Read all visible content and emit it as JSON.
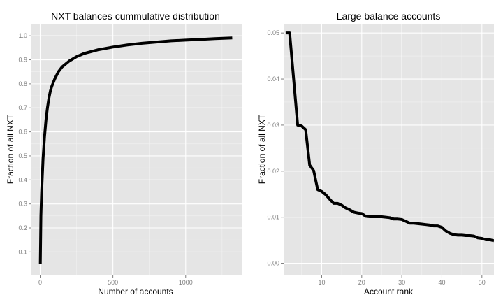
{
  "chart_data": [
    {
      "type": "line",
      "title": "NXT balances cummulative distribution",
      "xlabel": "Number of accounts",
      "ylabel": "Fraction of all NXT",
      "xlim": [
        -60,
        1390
      ],
      "ylim": [
        0.005,
        1.05
      ],
      "x_ticks": [
        0,
        500,
        1000
      ],
      "x_tick_labels": [
        "0",
        "500",
        "1000"
      ],
      "y_ticks": [
        0.1,
        0.2,
        0.3,
        0.4,
        0.5,
        0.6,
        0.7,
        0.8,
        0.9,
        1.0
      ],
      "y_tick_labels": [
        "0.1",
        "0.2",
        "0.3",
        "0.4",
        "0.5",
        "0.6",
        "0.7",
        "0.8",
        "0.9",
        "1.0"
      ],
      "grid": true,
      "series": [
        {
          "color": "#000000",
          "x": [
            1,
            3,
            5,
            10,
            15,
            20,
            30,
            40,
            50,
            60,
            70,
            80,
            100,
            125,
            150,
            200,
            250,
            300,
            400,
            500,
            600,
            700,
            800,
            900,
            1000,
            1100,
            1200,
            1320
          ],
          "y": [
            0.05,
            0.15,
            0.25,
            0.35,
            0.42,
            0.49,
            0.58,
            0.65,
            0.7,
            0.74,
            0.77,
            0.79,
            0.82,
            0.85,
            0.87,
            0.895,
            0.913,
            0.926,
            0.942,
            0.953,
            0.962,
            0.969,
            0.974,
            0.979,
            0.982,
            0.985,
            0.988,
            0.991
          ]
        }
      ]
    },
    {
      "type": "line",
      "title": "Large balance accounts",
      "xlabel": "Account rank",
      "ylabel": "Fraction of all NXT",
      "xlim": [
        0.5,
        53
      ],
      "ylim": [
        -0.0025,
        0.052
      ],
      "x_ticks": [
        10,
        20,
        30,
        40,
        50
      ],
      "x_tick_labels": [
        "10",
        "20",
        "30",
        "40",
        "50"
      ],
      "y_ticks": [
        0.0,
        0.01,
        0.02,
        0.03,
        0.04,
        0.05
      ],
      "y_tick_labels": [
        "0.00",
        "0.01",
        "0.02",
        "0.03",
        "0.04",
        "0.05"
      ],
      "grid": true,
      "series": [
        {
          "color": "#000000",
          "x": [
            1,
            2,
            3,
            4,
            5,
            6,
            7,
            8,
            9,
            10,
            11,
            12,
            13,
            14,
            15,
            16,
            17,
            18,
            19,
            20,
            21,
            22,
            23,
            24,
            25,
            26,
            27,
            28,
            29,
            30,
            31,
            32,
            33,
            34,
            35,
            36,
            37,
            38,
            39,
            40,
            41,
            42,
            43,
            44,
            45,
            46,
            47,
            48,
            49,
            50,
            51,
            52,
            53
          ],
          "y": [
            0.05,
            0.05,
            0.04,
            0.03,
            0.0298,
            0.029,
            0.0213,
            0.0201,
            0.016,
            0.0156,
            0.0149,
            0.0139,
            0.013,
            0.013,
            0.0126,
            0.012,
            0.0116,
            0.0111,
            0.0109,
            0.0108,
            0.0102,
            0.0101,
            0.0101,
            0.0101,
            0.0101,
            0.01,
            0.0099,
            0.0096,
            0.0096,
            0.0095,
            0.0091,
            0.0087,
            0.0087,
            0.0086,
            0.0085,
            0.0084,
            0.0083,
            0.0081,
            0.0081,
            0.0078,
            0.007,
            0.0065,
            0.0062,
            0.0061,
            0.0061,
            0.006,
            0.006,
            0.0059,
            0.0055,
            0.0054,
            0.0051,
            0.0051,
            0.0049
          ]
        }
      ]
    }
  ]
}
